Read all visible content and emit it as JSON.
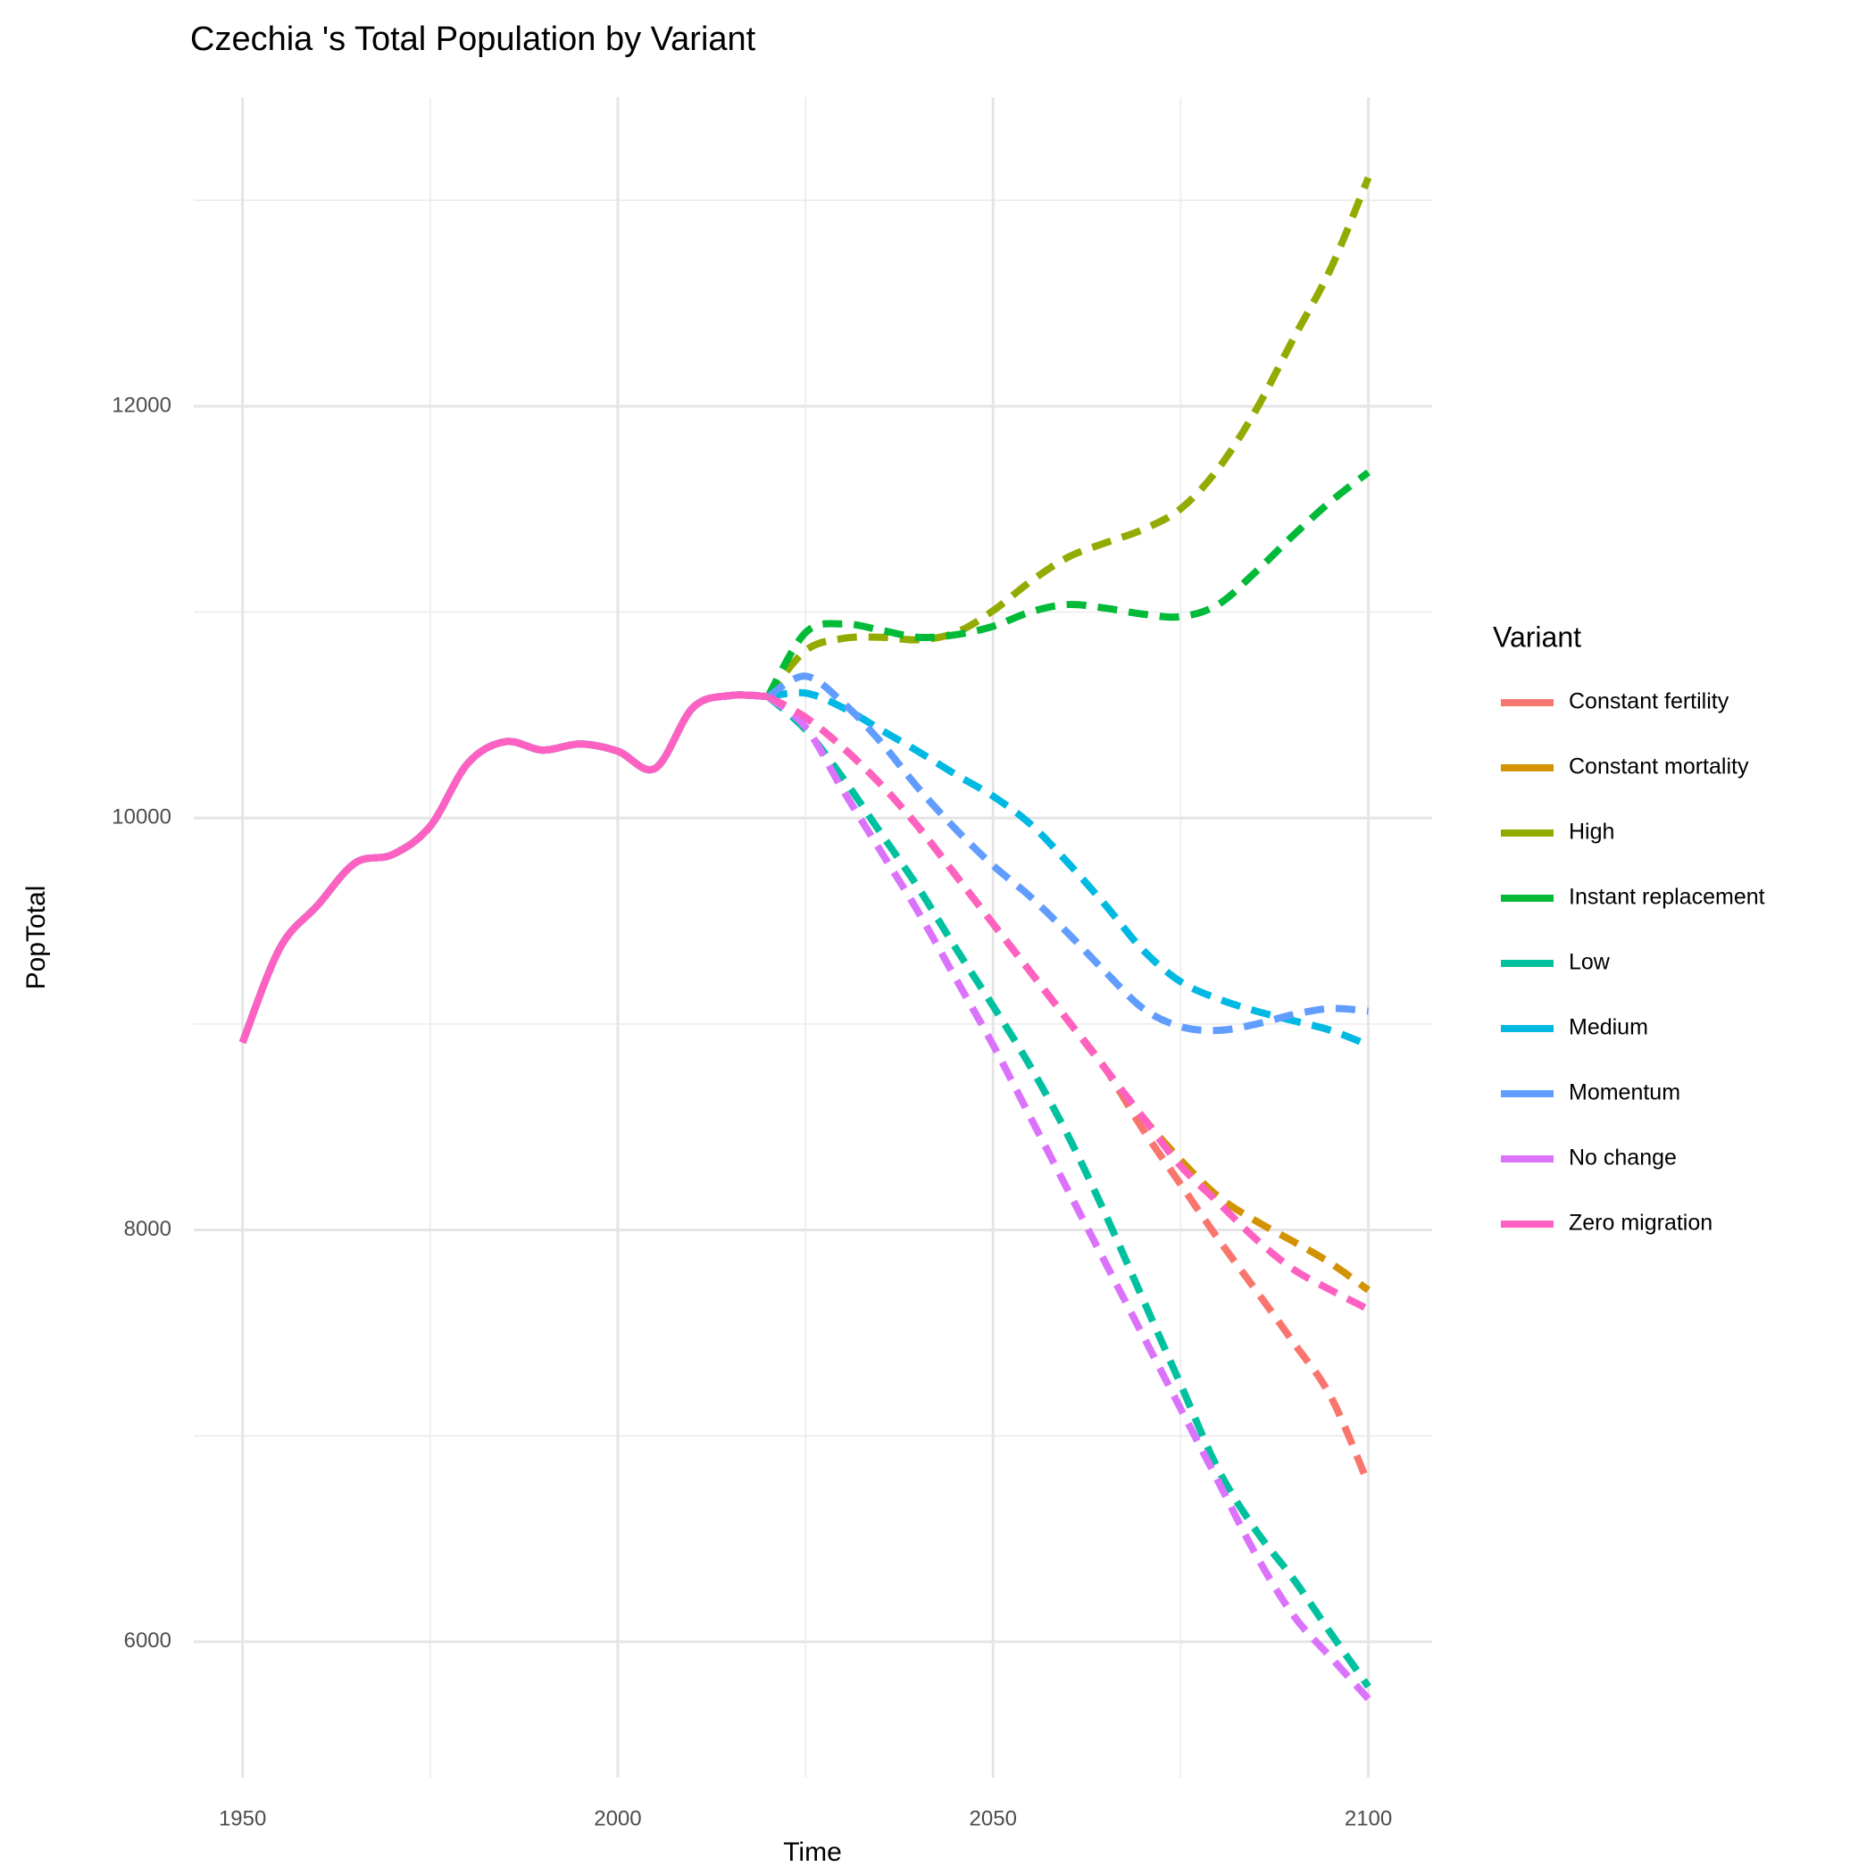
{
  "chart_data": {
    "type": "line",
    "title": "Czechia 's Total Population by Variant",
    "x_label": "Time",
    "y_label": "PopTotal",
    "legend_title": "Variant",
    "legend_position": "right",
    "grid": true,
    "xlim": [
      1943.5,
      2108.5
    ],
    "ylim": [
      5340,
      13500
    ],
    "xticks": [
      1950,
      2000,
      2050,
      2100
    ],
    "yticks": [
      6000,
      8000,
      10000,
      12000
    ],
    "x_minor_grid": [
      1975,
      2025,
      2075
    ],
    "y_minor_grid": [
      7000,
      9000,
      11000,
      13000
    ],
    "x": [
      1950,
      1955,
      1960,
      1965,
      1970,
      1975,
      1980,
      1985,
      1990,
      1995,
      2000,
      2005,
      2010,
      2015,
      2020,
      2025,
      2030,
      2035,
      2040,
      2045,
      2050,
      2055,
      2060,
      2065,
      2070,
      2075,
      2080,
      2085,
      2090,
      2095,
      2100
    ],
    "series": [
      {
        "name": "Constant fertility",
        "color": "#F8766D",
        "values": [
          8910,
          9370,
          9576,
          9782,
          9823,
          9960,
          10265,
          10371,
          10330,
          10360,
          10325,
          10242,
          10536,
          10595,
          10590,
          10489,
          10342,
          10165,
          9959,
          9723,
          9487,
          9252,
          9016,
          8781,
          8486,
          8221,
          7956,
          7708,
          7455,
          7190,
          6766
        ]
      },
      {
        "name": "Constant mortality",
        "color": "#D39200",
        "values": [
          8910,
          9370,
          9576,
          9782,
          9823,
          9960,
          10265,
          10371,
          10330,
          10360,
          10325,
          10242,
          10536,
          10595,
          10590,
          10489,
          10342,
          10165,
          9959,
          9723,
          9487,
          9252,
          9016,
          8781,
          8545,
          8339,
          8162,
          8044,
          7944,
          7838,
          7708
        ]
      },
      {
        "name": "High",
        "color": "#93AA00",
        "values": [
          8910,
          9370,
          9576,
          9782,
          9823,
          9960,
          10265,
          10371,
          10330,
          10360,
          10325,
          10242,
          10536,
          10595,
          10590,
          10813,
          10872,
          10878,
          10866,
          10900,
          11007,
          11149,
          11267,
          11337,
          11402,
          11502,
          11697,
          11980,
          12327,
          12669,
          13110
        ]
      },
      {
        "name": "Instant replacement",
        "color": "#00BA38",
        "values": [
          8910,
          9370,
          9576,
          9782,
          9823,
          9960,
          10265,
          10371,
          10330,
          10360,
          10325,
          10242,
          10536,
          10595,
          10590,
          10900,
          10943,
          10913,
          10878,
          10890,
          10931,
          11001,
          11037,
          11019,
          10990,
          10978,
          11037,
          11196,
          11373,
          11538,
          11679
        ]
      },
      {
        "name": "Low",
        "color": "#00C19F",
        "values": [
          8910,
          9370,
          9576,
          9782,
          9823,
          9960,
          10265,
          10371,
          10330,
          10360,
          10325,
          10242,
          10536,
          10595,
          10590,
          10430,
          10194,
          9929,
          9664,
          9370,
          9087,
          8792,
          8457,
          8074,
          7661,
          7249,
          6837,
          6542,
          6306,
          6041,
          5782
        ]
      },
      {
        "name": "Medium",
        "color": "#00B9E3",
        "values": [
          8910,
          9370,
          9576,
          9782,
          9823,
          9960,
          10265,
          10371,
          10330,
          10360,
          10325,
          10242,
          10536,
          10595,
          10590,
          10607,
          10536,
          10430,
          10324,
          10212,
          10106,
          9970,
          9782,
          9576,
          9358,
          9205,
          9122,
          9063,
          9016,
          8969,
          8898
        ]
      },
      {
        "name": "Momentum",
        "color": "#619CFF",
        "values": [
          8910,
          9370,
          9576,
          9782,
          9823,
          9960,
          10265,
          10371,
          10330,
          10360,
          10325,
          10242,
          10536,
          10595,
          10590,
          10689,
          10560,
          10371,
          10147,
          9947,
          9770,
          9617,
          9440,
          9252,
          9075,
          8987,
          8969,
          8999,
          9046,
          9075,
          9063
        ]
      },
      {
        "name": "No change",
        "color": "#DB72FB",
        "values": [
          8910,
          9370,
          9576,
          9782,
          9823,
          9960,
          10265,
          10371,
          10330,
          10360,
          10325,
          10242,
          10536,
          10595,
          10590,
          10442,
          10135,
          9841,
          9546,
          9222,
          8898,
          8545,
          8191,
          7838,
          7485,
          7131,
          6778,
          6424,
          6129,
          5924,
          5723
        ]
      },
      {
        "name": "Zero migration",
        "color": "#FF61C3",
        "values": [
          8910,
          9370,
          9576,
          9782,
          9823,
          9960,
          10265,
          10371,
          10330,
          10360,
          10325,
          10242,
          10536,
          10595,
          10590,
          10489,
          10342,
          10165,
          9959,
          9723,
          9487,
          9252,
          9016,
          8781,
          8545,
          8310,
          8133,
          7956,
          7809,
          7708,
          7614
        ]
      }
    ]
  }
}
